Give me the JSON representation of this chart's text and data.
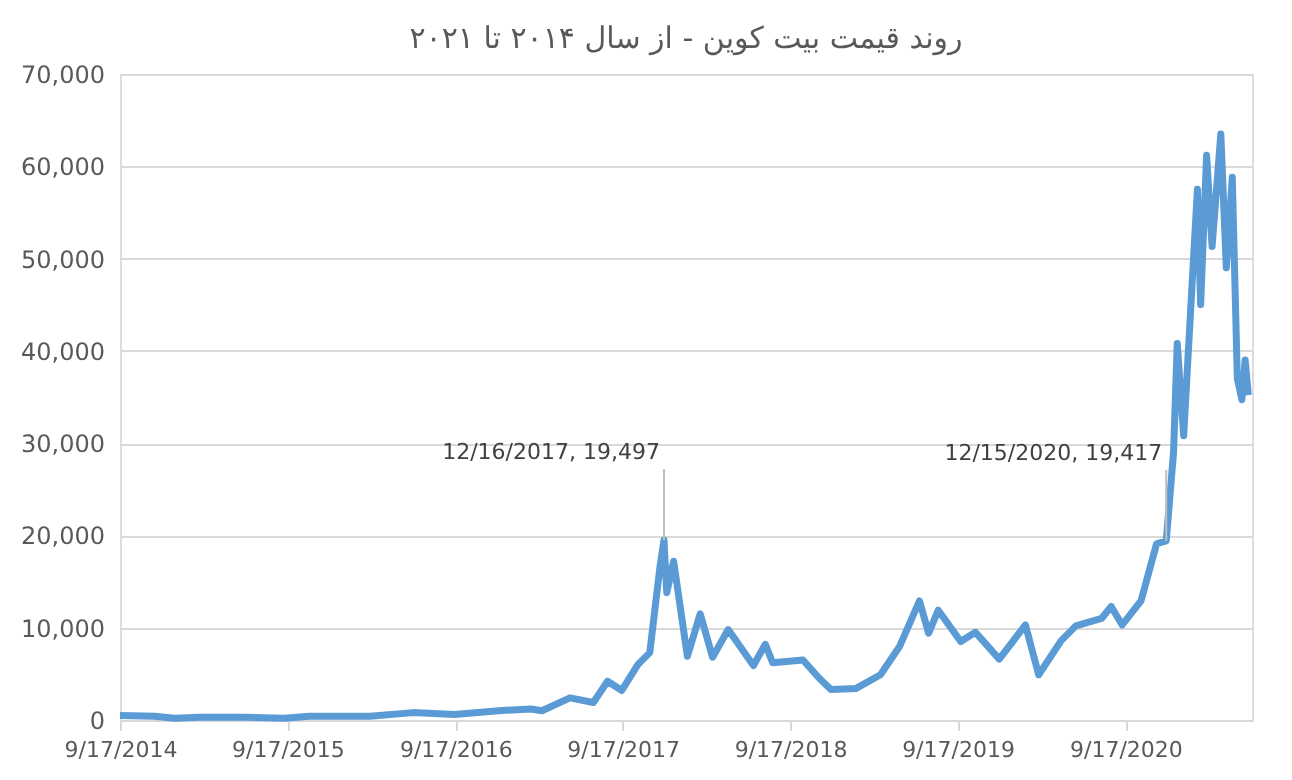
{
  "chart_data": {
    "type": "line",
    "title": "روند قیمت بیت کوین - از سال ۲۰۱۴ تا ۲۰۲۱",
    "x": [
      "2014-09-17",
      "2014-12-01",
      "2015-01-14",
      "2015-03-10",
      "2015-06-15",
      "2015-09-10",
      "2015-11-04",
      "2016-01-05",
      "2016-03-15",
      "2016-06-17",
      "2016-09-15",
      "2016-12-20",
      "2017-03-01",
      "2017-03-25",
      "2017-05-25",
      "2017-07-15",
      "2017-08-15",
      "2017-09-15",
      "2017-10-20",
      "2017-11-15",
      "2017-12-07",
      "2017-12-16",
      "2017-12-22",
      "2018-01-06",
      "2018-02-05",
      "2018-03-05",
      "2018-04-01",
      "2018-05-05",
      "2018-06-29",
      "2018-07-25",
      "2018-08-10",
      "2018-10-15",
      "2018-11-20",
      "2018-12-15",
      "2019-02-07",
      "2019-04-02",
      "2019-05-14",
      "2019-06-26",
      "2019-07-16",
      "2019-08-06",
      "2019-09-24",
      "2019-10-26",
      "2019-12-17",
      "2020-02-12",
      "2020-03-12",
      "2020-04-30",
      "2020-06-01",
      "2020-07-27",
      "2020-08-17",
      "2020-09-10",
      "2020-10-21",
      "2020-11-24",
      "2020-12-15",
      "2020-12-31",
      "2021-01-08",
      "2021-01-22",
      "2021-02-08",
      "2021-02-21",
      "2021-02-28",
      "2021-03-13",
      "2021-03-25",
      "2021-04-13",
      "2021-04-25",
      "2021-05-08",
      "2021-05-19",
      "2021-05-29",
      "2021-06-05",
      "2021-06-12"
    ],
    "series": [
      {
        "color": "#5b9bd5",
        "values": [
          500,
          400,
          200,
          300,
          300,
          200,
          400,
          400,
          400,
          800,
          600,
          1000,
          1200,
          1000,
          2400,
          1900,
          4200,
          3200,
          6000,
          7300,
          16500,
          19497,
          13800,
          17200,
          6900,
          11500,
          6800,
          9800,
          5900,
          8200,
          6200,
          6500,
          4500,
          3300,
          3400,
          4900,
          8000,
          12900,
          9400,
          11900,
          8500,
          9500,
          6600,
          10300,
          4900,
          8600,
          10200,
          11000,
          12300,
          10300,
          12900,
          19100,
          19417,
          29000,
          40800,
          30800,
          46000,
          57500,
          45000,
          61200,
          51300,
          63500,
          49000,
          58800,
          37000,
          34700,
          39000,
          35200
        ]
      }
    ],
    "xlim": [
      "2014-09-17",
      "2021-06-20"
    ],
    "xticks": [
      {
        "value": "2014-09-17",
        "label": "9/17/2014"
      },
      {
        "value": "2015-09-17",
        "label": "9/17/2015"
      },
      {
        "value": "2016-09-17",
        "label": "9/17/2016"
      },
      {
        "value": "2017-09-17",
        "label": "9/17/2017"
      },
      {
        "value": "2018-09-17",
        "label": "9/17/2018"
      },
      {
        "value": "2019-09-17",
        "label": "9/17/2019"
      },
      {
        "value": "2020-09-17",
        "label": "9/17/2020"
      }
    ],
    "ylim": [
      0,
      70000
    ],
    "yticks": [
      0,
      {
        "value": 10000,
        "label": "10,000"
      },
      {
        "value": 20000,
        "label": "20,000"
      },
      {
        "value": 30000,
        "label": "30,000"
      },
      {
        "value": 40000,
        "label": "40,000"
      },
      {
        "value": 50000,
        "label": "50,000"
      },
      {
        "value": 60000,
        "label": "60,000"
      },
      {
        "value": 70000,
        "label": "70,000"
      }
    ],
    "grid": "y",
    "line_style": "solid",
    "marker": "none",
    "annotations": [
      {
        "text": "12/16/2017, 19,497",
        "x": "2017-12-16",
        "y": 19497
      },
      {
        "text": "12/15/2020, 19,417",
        "x": "2020-12-15",
        "y": 19417
      }
    ]
  }
}
